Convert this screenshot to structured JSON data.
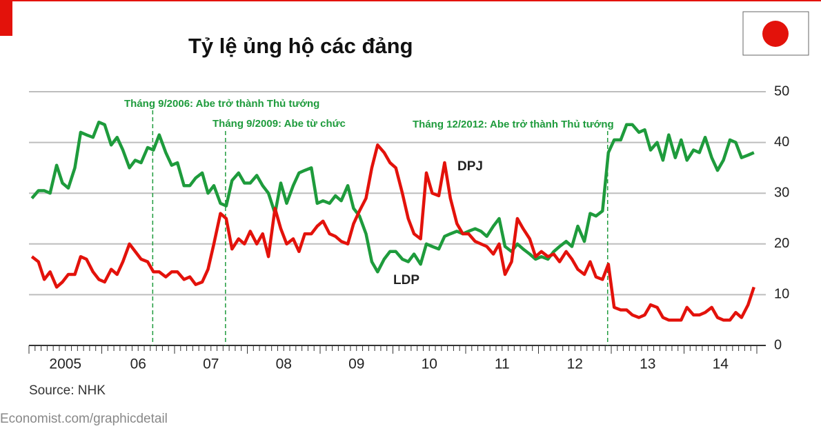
{
  "chart_data": {
    "type": "line",
    "title": "Tỷ lệ ủng hộ các đảng",
    "source": "Source: NHK",
    "footer": "Economist.com/graphicdetail",
    "xlim": [
      2005,
      2015
    ],
    "xticks": [
      {
        "value": 2005.5,
        "label": "2005"
      },
      {
        "value": 2006.5,
        "label": "06"
      },
      {
        "value": 2007.5,
        "label": "07"
      },
      {
        "value": 2008.5,
        "label": "08"
      },
      {
        "value": 2009.5,
        "label": "09"
      },
      {
        "value": 2010.5,
        "label": "10"
      },
      {
        "value": 2011.5,
        "label": "11"
      },
      {
        "value": 2012.5,
        "label": "12"
      },
      {
        "value": 2013.5,
        "label": "13"
      },
      {
        "value": 2014.5,
        "label": "14"
      }
    ],
    "ylim": [
      0,
      50
    ],
    "yticks": [
      0,
      10,
      20,
      30,
      40,
      50
    ],
    "grid": true,
    "annotations": [
      {
        "text": "Tháng 9/2006: Abe trở thành Thủ tướng",
        "x": 2006.7
      },
      {
        "text": "Tháng 9/2009: Abe từ chức",
        "x": 2007.7
      },
      {
        "text": "Tháng 12/2012: Abe trở thành Thủ tướng",
        "x": 2012.95
      }
    ],
    "x": [
      2005.04,
      2005.13,
      2005.21,
      2005.29,
      2005.38,
      2005.46,
      2005.54,
      2005.63,
      2005.71,
      2005.79,
      2005.88,
      2005.96,
      2006.04,
      2006.13,
      2006.21,
      2006.29,
      2006.38,
      2006.46,
      2006.54,
      2006.63,
      2006.71,
      2006.79,
      2006.88,
      2006.96,
      2007.04,
      2007.13,
      2007.21,
      2007.29,
      2007.38,
      2007.46,
      2007.54,
      2007.63,
      2007.71,
      2007.79,
      2007.88,
      2007.96,
      2008.04,
      2008.13,
      2008.21,
      2008.29,
      2008.38,
      2008.46,
      2008.54,
      2008.63,
      2008.71,
      2008.79,
      2008.88,
      2008.96,
      2009.04,
      2009.13,
      2009.21,
      2009.29,
      2009.38,
      2009.46,
      2009.54,
      2009.63,
      2009.71,
      2009.79,
      2009.88,
      2009.96,
      2010.04,
      2010.13,
      2010.21,
      2010.29,
      2010.38,
      2010.46,
      2010.54,
      2010.63,
      2010.71,
      2010.79,
      2010.88,
      2010.96,
      2011.04,
      2011.13,
      2011.21,
      2011.29,
      2011.38,
      2011.46,
      2011.54,
      2011.63,
      2011.71,
      2011.79,
      2011.88,
      2011.96,
      2012.04,
      2012.13,
      2012.21,
      2012.29,
      2012.38,
      2012.46,
      2012.54,
      2012.63,
      2012.71,
      2012.79,
      2012.88,
      2012.96,
      2013.04,
      2013.13,
      2013.21,
      2013.29,
      2013.38,
      2013.46,
      2013.54,
      2013.63,
      2013.71,
      2013.79,
      2013.88,
      2013.96,
      2014.04,
      2014.13,
      2014.21,
      2014.29,
      2014.38,
      2014.46,
      2014.54,
      2014.63,
      2014.71,
      2014.79,
      2014.88,
      2014.96
    ],
    "series": [
      {
        "name": "LDP",
        "color": "#1e9b3c",
        "values": [
          29,
          30.5,
          30.5,
          30,
          35.5,
          32,
          31,
          35,
          42,
          41.5,
          41,
          44,
          43.5,
          39.5,
          41,
          38.5,
          35,
          36.5,
          36,
          39,
          38.5,
          41.5,
          38,
          35.5,
          36,
          31.5,
          31.5,
          33,
          34,
          30,
          31.5,
          28,
          27.5,
          32.5,
          34,
          32,
          32,
          33.5,
          31.5,
          30,
          26,
          32,
          28,
          31.5,
          34,
          34.5,
          35,
          28,
          28.5,
          28,
          29.5,
          28.5,
          31.5,
          27,
          25.5,
          22,
          16.5,
          14.5,
          17,
          18.5,
          18.5,
          17,
          16.5,
          18,
          16,
          20,
          19.5,
          19,
          21.5,
          22,
          22.5,
          22,
          22.5,
          23,
          22.5,
          21.5,
          23.5,
          25,
          19.5,
          18.5,
          20,
          19,
          18,
          17,
          17.5,
          17,
          18.5,
          19.5,
          20.5,
          19.5,
          23.5,
          20.5,
          26,
          25.5,
          26.5,
          38,
          40.5,
          40.5,
          43.5,
          43.5,
          42,
          42.5,
          38.5,
          40,
          36.5,
          41.5,
          37,
          40.5,
          36.5,
          38.5,
          38,
          41,
          37,
          34.5,
          36.5,
          40.5,
          40,
          37,
          37.5,
          38
        ]
      },
      {
        "name": "DPJ",
        "color": "#e3120b",
        "values": [
          17.5,
          16.5,
          13,
          14.5,
          11.5,
          12.5,
          14,
          14,
          17.5,
          17,
          14.5,
          13,
          12.5,
          15,
          14,
          16.5,
          20,
          18.5,
          17,
          16.5,
          14.5,
          14.5,
          13.5,
          14.5,
          14.5,
          13,
          13.5,
          12,
          12.5,
          15,
          20,
          26,
          25,
          19,
          21,
          20,
          22.5,
          20,
          22,
          17.5,
          27,
          23,
          20,
          21,
          18.5,
          22,
          22,
          23.5,
          24.5,
          22,
          21.5,
          20.5,
          20,
          24,
          26.5,
          29,
          35,
          39.5,
          38,
          36,
          35,
          30,
          25,
          22,
          21,
          34,
          30,
          29.5,
          36,
          29,
          24,
          22,
          22,
          20.5,
          20,
          19.5,
          18,
          20,
          14,
          16.5,
          25,
          23,
          21,
          17.5,
          18.5,
          17.5,
          18,
          16.5,
          18.5,
          17,
          15,
          14,
          16.5,
          13.5,
          13,
          16,
          7.5,
          7,
          7,
          6,
          5.5,
          6,
          8,
          7.5,
          5.5,
          5,
          5,
          5,
          7.5,
          6,
          6,
          6.5,
          7.5,
          5.5,
          5,
          5,
          6.5,
          5.5,
          8,
          11.5
        ]
      }
    ]
  }
}
